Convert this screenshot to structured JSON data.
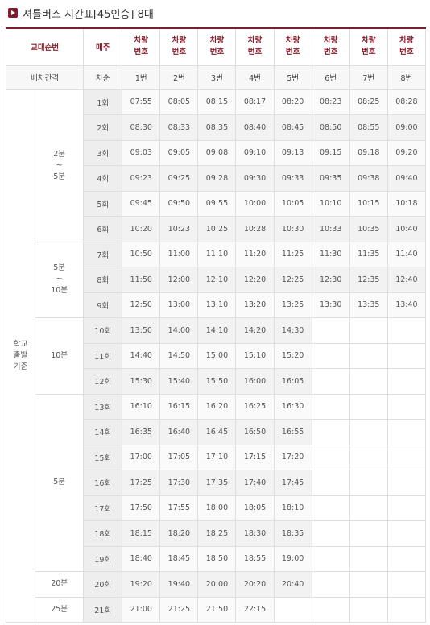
{
  "title": "셔틀버스 시간표[45인승] 8대",
  "headers": {
    "order": "교대순번",
    "hourly": "매주",
    "vehicle_no": "차량\n번호",
    "interval": "배차간격",
    "count": "차순",
    "buses": [
      "1번",
      "2번",
      "3번",
      "4번",
      "5번",
      "6번",
      "7번",
      "8번"
    ]
  },
  "side_label": "학교\n출발\n기준",
  "groups": [
    "2분\n~\n5분",
    "5분\n~\n10분",
    "10분",
    "5분",
    "20분",
    "25분"
  ],
  "rows": [
    {
      "count": "1회",
      "times": [
        "07:55",
        "08:05",
        "08:15",
        "08:17",
        "08:20",
        "08:23",
        "08:25",
        "08:28"
      ]
    },
    {
      "count": "2회",
      "times": [
        "08:30",
        "08:33",
        "08:35",
        "08:40",
        "08:45",
        "08:50",
        "08:55",
        "09:00"
      ]
    },
    {
      "count": "3회",
      "times": [
        "09:03",
        "09:05",
        "09:08",
        "09:10",
        "09:13",
        "09:15",
        "09:18",
        "09:20"
      ]
    },
    {
      "count": "4회",
      "times": [
        "09:23",
        "09:25",
        "09:28",
        "09:30",
        "09:33",
        "09:35",
        "09:38",
        "09:40"
      ]
    },
    {
      "count": "5회",
      "times": [
        "09:45",
        "09:50",
        "09:55",
        "10:00",
        "10:05",
        "10:10",
        "10:15",
        "10:18"
      ]
    },
    {
      "count": "6회",
      "times": [
        "10:20",
        "10:23",
        "10:25",
        "10:28",
        "10:30",
        "10:33",
        "10:35",
        "10:40"
      ]
    },
    {
      "count": "7회",
      "times": [
        "10:50",
        "11:00",
        "11:10",
        "11:20",
        "11:25",
        "11:30",
        "11:35",
        "11:40"
      ]
    },
    {
      "count": "8회",
      "times": [
        "11:50",
        "12:00",
        "12:10",
        "12:20",
        "12:25",
        "12:30",
        "12:35",
        "12:40"
      ]
    },
    {
      "count": "9회",
      "times": [
        "12:50",
        "13:00",
        "13:10",
        "13:20",
        "13:25",
        "13:30",
        "13:35",
        "13:40"
      ]
    },
    {
      "count": "10회",
      "times": [
        "13:50",
        "14:00",
        "14:10",
        "14:20",
        "14:30"
      ]
    },
    {
      "count": "11회",
      "times": [
        "14:40",
        "14:50",
        "15:00",
        "15:10",
        "15:20"
      ]
    },
    {
      "count": "12회",
      "times": [
        "15:30",
        "15:40",
        "15:50",
        "16:00",
        "16:05"
      ]
    },
    {
      "count": "13회",
      "times": [
        "16:10",
        "16:15",
        "16:20",
        "16:25",
        "16:30"
      ]
    },
    {
      "count": "14회",
      "times": [
        "16:35",
        "16:40",
        "16:45",
        "16:50",
        "16:55"
      ]
    },
    {
      "count": "15회",
      "times": [
        "17:00",
        "17:05",
        "17:10",
        "17:15",
        "17:20"
      ]
    },
    {
      "count": "16회",
      "times": [
        "17:25",
        "17:30",
        "17:35",
        "17:40",
        "17:45"
      ]
    },
    {
      "count": "17회",
      "times": [
        "17:50",
        "17:55",
        "18:00",
        "18:05",
        "18:10"
      ]
    },
    {
      "count": "18회",
      "times": [
        "18:15",
        "18:20",
        "18:25",
        "18:30",
        "18:35"
      ]
    },
    {
      "count": "19회",
      "times": [
        "18:40",
        "18:45",
        "18:50",
        "18:55",
        "19:00"
      ]
    },
    {
      "count": "20회",
      "times": [
        "19:20",
        "19:40",
        "20:00",
        "20:20",
        "20:40"
      ]
    },
    {
      "count": "21회",
      "times": [
        "21:00",
        "21:25",
        "21:50",
        "22:15"
      ]
    }
  ]
}
